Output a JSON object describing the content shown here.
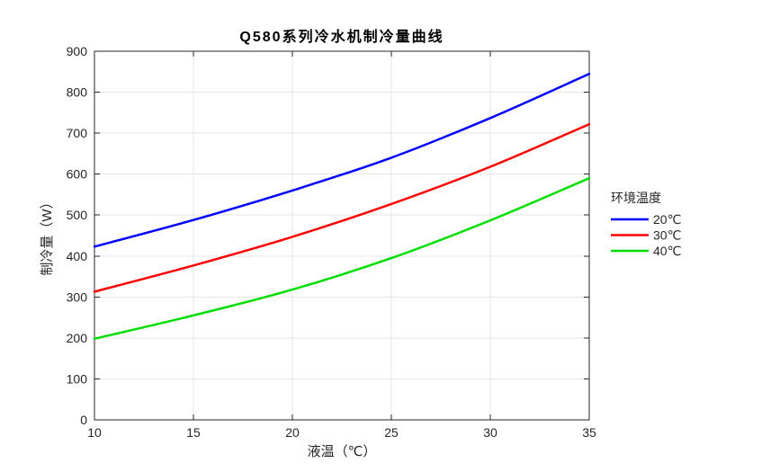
{
  "chart_data": {
    "type": "line",
    "title": "Q580系列冷水机制冷量曲线",
    "xlabel": "液温（℃）",
    "ylabel": "制冷量（W）",
    "x": [
      10,
      15,
      20,
      25,
      30,
      35
    ],
    "x_ticks": [
      10,
      15,
      20,
      25,
      30,
      35
    ],
    "y_ticks": [
      0,
      100,
      200,
      300,
      400,
      500,
      600,
      700,
      800,
      900
    ],
    "xlim": [
      10,
      35
    ],
    "ylim": [
      0,
      900
    ],
    "grid": true,
    "legend_title": "环境温度",
    "legend_position": "right-outside",
    "series": [
      {
        "name": "20℃",
        "color": "#0000ff",
        "values": [
          423,
          488,
          560,
          640,
          737,
          845
        ]
      },
      {
        "name": "30℃",
        "color": "#ff0000",
        "values": [
          313,
          377,
          447,
          527,
          618,
          722
        ]
      },
      {
        "name": "40℃",
        "color": "#00dd00",
        "values": [
          198,
          255,
          318,
          395,
          487,
          590
        ]
      }
    ]
  }
}
